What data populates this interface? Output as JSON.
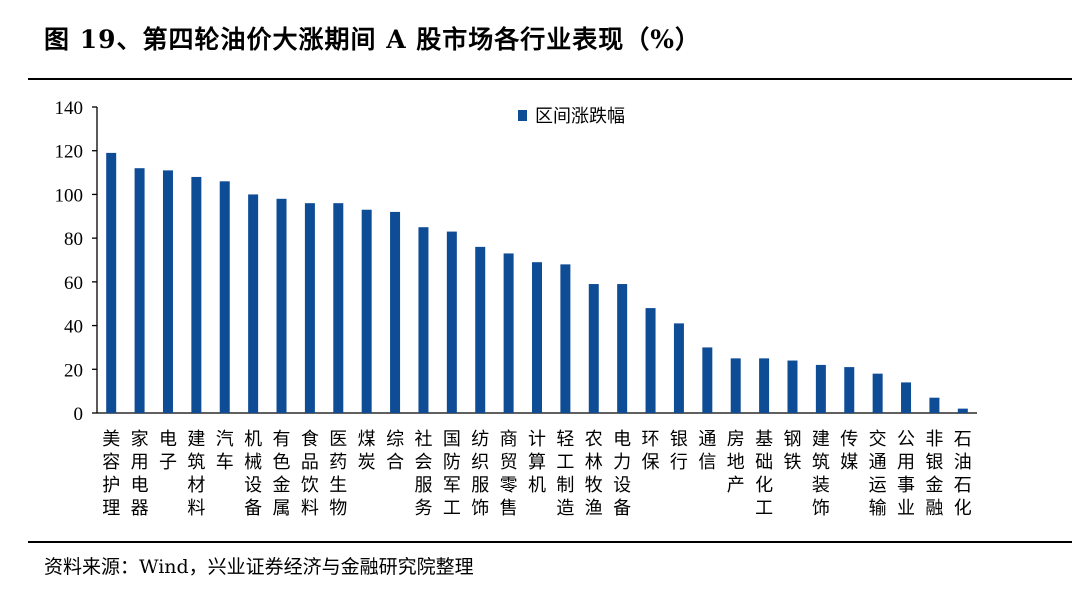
{
  "header": {
    "title": "图 19、第四轮油价大涨期间 A 股市场各行业表现（%）"
  },
  "footer": {
    "source": "资料来源：Wind，兴业证券经济与金融研究院整理"
  },
  "colors": {
    "bar": "#0f4c96",
    "axis": "#000000"
  },
  "chart_data": {
    "type": "bar",
    "title": "",
    "xlabel": "",
    "ylabel": "",
    "ylim": [
      0,
      140
    ],
    "yticks": [
      "0",
      "20",
      "40",
      "60",
      "80",
      "100",
      "120",
      "140"
    ],
    "grid": false,
    "legend_position": "top-center",
    "categories": [
      "美容护理",
      "家用电器",
      "电子",
      "建筑材料",
      "汽车",
      "机械设备",
      "有色金属",
      "食品饮料",
      "医药生物",
      "煤炭",
      "综合",
      "社会服务",
      "国防军工",
      "纺织服饰",
      "商贸零售",
      "计算机",
      "轻工制造",
      "农林牧渔",
      "电力设备",
      "环保",
      "银行",
      "通信",
      "房地产",
      "基础化工",
      "钢铁",
      "建筑装饰",
      "传媒",
      "交通运输",
      "公用事业",
      "非银金融",
      "石油石化"
    ],
    "series": [
      {
        "name": "区间涨跌幅",
        "values": [
          119,
          112,
          111,
          108,
          106,
          100,
          98,
          96,
          96,
          93,
          92,
          85,
          83,
          76,
          73,
          69,
          68,
          59,
          59,
          48,
          41,
          30,
          25,
          25,
          24,
          22,
          21,
          18,
          14,
          7,
          2
        ]
      }
    ]
  }
}
